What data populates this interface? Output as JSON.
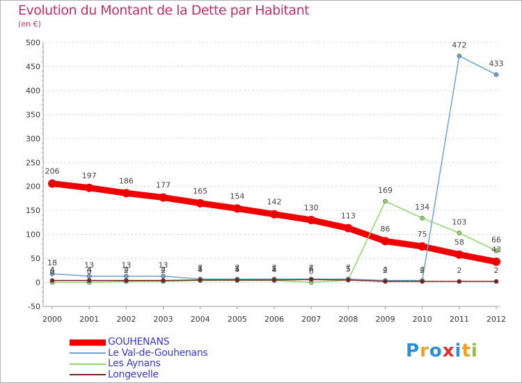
{
  "chart_data": {
    "type": "line",
    "title": "Evolution du Montant de la Dette par Habitant",
    "subtitle": "(en €)",
    "xlabel": "",
    "ylabel": "",
    "x": [
      "2000",
      "2001",
      "2002",
      "2003",
      "2004",
      "2005",
      "2006",
      "2007",
      "2008",
      "2009",
      "2010",
      "2011",
      "2012"
    ],
    "ylim": [
      -50,
      500
    ],
    "yticks": [
      -50,
      0,
      50,
      100,
      150,
      200,
      250,
      300,
      350,
      400,
      450,
      500
    ],
    "grid": "horizontal dashed",
    "legend_position": "bottom-left",
    "series": [
      {
        "name": "GOUHENANS",
        "color": "#ee0000",
        "values": [
          206,
          197,
          186,
          177,
          165,
          154,
          142,
          130,
          113,
          86,
          75,
          58,
          43
        ],
        "labels": [
          "206",
          "197",
          "186",
          "177",
          "165",
          "154",
          "142",
          "130",
          "113",
          "86",
          "75",
          "58",
          "43"
        ]
      },
      {
        "name": "Le Val-de-Gouhenans",
        "color": "#6fa2d0",
        "values": [
          18,
          13,
          13,
          13,
          7,
          7,
          7,
          7,
          7,
          4,
          4,
          472,
          433
        ],
        "labels": [
          "18",
          "13",
          "13",
          "13",
          "7",
          "7",
          "7",
          "7",
          "7",
          "4",
          "4",
          "472",
          "433"
        ]
      },
      {
        "name": "Les Aynans",
        "color": "#8fd66a",
        "values": [
          0,
          0,
          2,
          2,
          4,
          4,
          4,
          0,
          5,
          169,
          134,
          103,
          66
        ],
        "labels": [
          "0",
          "0",
          "2",
          "2",
          "4",
          "4",
          "4",
          "0",
          "5",
          "169",
          "134",
          "103",
          "66"
        ]
      },
      {
        "name": "Longevelle",
        "color": "#7a2020",
        "values": [
          4,
          4,
          4,
          4,
          5,
          5,
          5,
          6,
          5,
          2,
          2,
          2,
          2
        ],
        "labels": [
          "4",
          "4",
          "4",
          "4",
          "5",
          "5",
          "5",
          "6",
          "5",
          "2",
          "2",
          "2",
          "2"
        ]
      }
    ]
  },
  "brand": {
    "letters": [
      "P",
      "r",
      "o",
      "x",
      "i",
      "t",
      "i"
    ],
    "colors": [
      "#2a8fd8",
      "#f0a020",
      "#2a8fd8",
      "#e03030",
      "#2a8fd8",
      "#f0a020",
      "#8ac040"
    ]
  }
}
